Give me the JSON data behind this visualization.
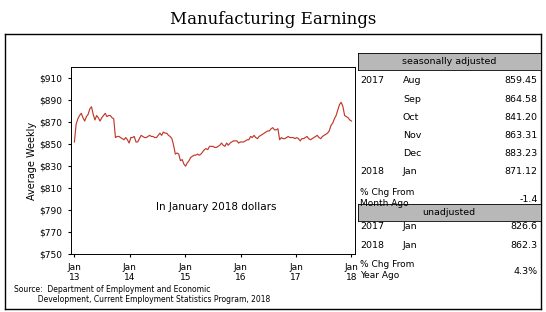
{
  "title": "Manufacturing Earnings",
  "ylabel": "Average Weekly",
  "annotation": "In January 2018 dollars",
  "source": "Source:  Department of Employment and Economic\n          Development, Current Employment Statistics Program, 2018",
  "line_color": "#c0392b",
  "ylim": [
    750,
    920
  ],
  "yticks": [
    750,
    770,
    790,
    810,
    830,
    850,
    870,
    890,
    910
  ],
  "ytick_labels": [
    "$750",
    "$770",
    "$790",
    "$810",
    "$830",
    "$850",
    "$870",
    "$890",
    "$910"
  ],
  "xtick_labels": [
    "Jan\n13",
    "Jan\n14",
    "Jan\n15",
    "Jan\n16",
    "Jan\n17",
    "Jan\n18"
  ],
  "seasonally_adjusted_label": "seasonally adjusted",
  "sa_data": [
    [
      "2017",
      "Aug",
      "859.45"
    ],
    [
      "",
      "Sep",
      "864.58"
    ],
    [
      "",
      "Oct",
      "841.20"
    ],
    [
      "",
      "Nov",
      "863.31"
    ],
    [
      "",
      "Dec",
      "883.23"
    ],
    [
      "2018",
      "Jan",
      "871.12"
    ]
  ],
  "sa_pct_chg_label": "% Chg From\nMonth Ago",
  "sa_pct_chg_value": "-1.4",
  "unadjusted_label": "unadjusted",
  "ua_data": [
    [
      "2017",
      "Jan",
      "826.6"
    ],
    [
      "2018",
      "Jan",
      "862.3"
    ]
  ],
  "ua_pct_chg_label": "% Chg From\nYear Ago",
  "ua_pct_chg_value": "4.3%",
  "y_values": [
    852,
    868,
    873,
    876,
    878,
    874,
    871,
    875,
    877,
    882,
    884,
    877,
    872,
    876,
    874,
    871,
    874,
    876,
    878,
    875,
    876,
    876,
    874,
    873,
    856,
    857,
    857,
    856,
    855,
    854,
    856,
    854,
    851,
    856,
    856,
    857,
    852,
    852,
    855,
    858,
    857,
    856,
    856,
    857,
    858,
    857,
    857,
    856,
    856,
    858,
    860,
    858,
    861,
    860,
    860,
    858,
    857,
    855,
    849,
    841,
    842,
    841,
    835,
    836,
    832,
    830,
    833,
    835,
    838,
    839,
    840,
    840,
    841,
    840,
    841,
    843,
    845,
    846,
    845,
    848,
    848,
    848,
    847,
    847,
    848,
    849,
    851,
    849,
    848,
    851,
    849,
    851,
    852,
    853,
    853,
    853,
    851,
    852,
    852,
    852,
    853,
    854,
    854,
    857,
    856,
    858,
    856,
    855,
    857,
    858,
    859,
    860,
    861,
    862,
    862,
    864,
    865,
    863,
    863,
    864,
    854,
    856,
    855,
    855,
    856,
    857,
    856,
    856,
    856,
    855,
    856,
    855,
    853,
    855,
    855,
    856,
    857,
    855,
    854,
    855,
    856,
    857,
    858,
    856,
    855,
    857,
    858,
    859,
    860,
    862,
    867,
    869,
    873,
    876,
    881,
    886,
    888,
    884,
    876,
    875,
    874,
    872,
    871
  ]
}
